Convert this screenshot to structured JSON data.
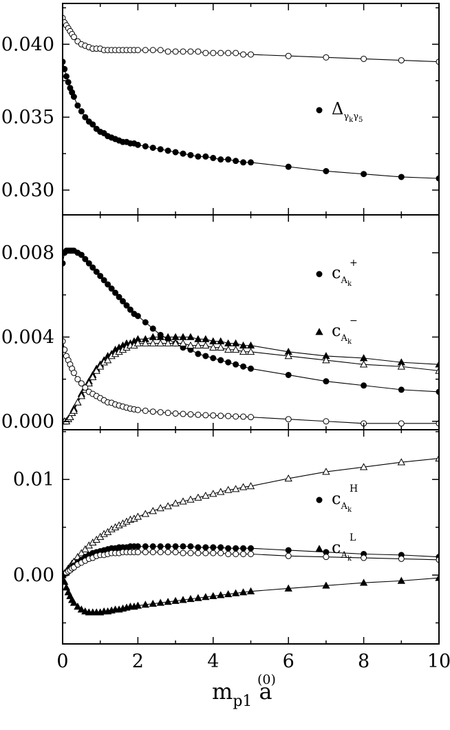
{
  "chart_data": [
    {
      "type": "scatter",
      "x_ticks": [
        "0",
        "2",
        "4",
        "6",
        "8",
        "10"
      ],
      "y_ticks": [
        "0.030",
        "0.035",
        "0.040"
      ],
      "xlim": [
        0,
        10
      ],
      "ylim": [
        0.0283,
        0.0428
      ],
      "legend": [
        {
          "marker": "filled-circle",
          "main": "Δ",
          "sub": "γ",
          "subsub": "k",
          "sub_tail": "γ",
          "sub_tail2": "5",
          "sup": ""
        }
      ],
      "series": [
        {
          "marker": "open-circle",
          "line": true,
          "x": [
            0,
            0.05,
            0.1,
            0.15,
            0.2,
            0.25,
            0.3,
            0.4,
            0.5,
            0.6,
            0.7,
            0.8,
            0.9,
            1.0,
            1.1,
            1.2,
            1.3,
            1.4,
            1.5,
            1.6,
            1.7,
            1.8,
            1.9,
            2.0,
            2.2,
            2.4,
            2.6,
            2.8,
            3.0,
            3.2,
            3.4,
            3.6,
            3.8,
            4.0,
            4.2,
            4.4,
            4.6,
            4.8,
            5.0,
            6,
            7,
            8,
            9,
            10
          ],
          "y": [
            0.0418,
            0.0415,
            0.0413,
            0.0411,
            0.0409,
            0.0407,
            0.0405,
            0.0402,
            0.04,
            0.0399,
            0.0398,
            0.0397,
            0.0397,
            0.0397,
            0.0396,
            0.0396,
            0.0396,
            0.0396,
            0.0396,
            0.0396,
            0.0396,
            0.0396,
            0.0396,
            0.0396,
            0.0396,
            0.0396,
            0.0396,
            0.0395,
            0.0395,
            0.0395,
            0.0395,
            0.0395,
            0.0394,
            0.0394,
            0.0394,
            0.0394,
            0.0394,
            0.0393,
            0.0393,
            0.0392,
            0.0391,
            0.039,
            0.0389,
            0.0388
          ]
        },
        {
          "marker": "filled-circle",
          "line": true,
          "x": [
            0,
            0.05,
            0.1,
            0.15,
            0.2,
            0.25,
            0.3,
            0.4,
            0.5,
            0.6,
            0.7,
            0.8,
            0.9,
            1.0,
            1.1,
            1.2,
            1.3,
            1.4,
            1.5,
            1.6,
            1.7,
            1.8,
            1.9,
            2.0,
            2.2,
            2.4,
            2.6,
            2.8,
            3.0,
            3.2,
            3.4,
            3.6,
            3.8,
            4.0,
            4.2,
            4.4,
            4.6,
            4.8,
            5.0,
            6,
            7,
            8,
            9,
            10
          ],
          "y": [
            0.0388,
            0.0383,
            0.0378,
            0.0374,
            0.037,
            0.0367,
            0.0364,
            0.0358,
            0.0354,
            0.035,
            0.0347,
            0.0345,
            0.0342,
            0.034,
            0.0339,
            0.0337,
            0.0336,
            0.0335,
            0.0334,
            0.0333,
            0.0333,
            0.0332,
            0.0332,
            0.0331,
            0.033,
            0.0329,
            0.0328,
            0.0327,
            0.0326,
            0.0325,
            0.0324,
            0.0323,
            0.0323,
            0.0322,
            0.0321,
            0.0321,
            0.032,
            0.0319,
            0.0319,
            0.0316,
            0.0313,
            0.0311,
            0.0309,
            0.0308
          ]
        }
      ]
    },
    {
      "type": "scatter",
      "x_ticks": [
        "0",
        "2",
        "4",
        "6",
        "8",
        "10"
      ],
      "y_ticks": [
        "0.000",
        "0.004",
        "0.008"
      ],
      "xlim": [
        0,
        10
      ],
      "ylim": [
        -0.0004,
        0.0098
      ],
      "legend": [
        {
          "marker": "filled-circle",
          "main": "c",
          "sub": "A",
          "subsub": "k",
          "sub_tail": "",
          "sub_tail2": "",
          "sup": "+"
        },
        {
          "marker": "filled-triangle",
          "main": "c",
          "sub": "A",
          "subsub": "k",
          "sub_tail": "",
          "sub_tail2": "",
          "sup": "−"
        }
      ],
      "series": [
        {
          "marker": "filled-circle",
          "line": true,
          "x": [
            0,
            0.05,
            0.1,
            0.15,
            0.2,
            0.25,
            0.3,
            0.4,
            0.5,
            0.6,
            0.7,
            0.8,
            0.9,
            1.0,
            1.1,
            1.2,
            1.3,
            1.4,
            1.5,
            1.6,
            1.7,
            1.8,
            1.9,
            2.0,
            2.2,
            2.4,
            2.6,
            2.8,
            3.0,
            3.2,
            3.4,
            3.6,
            3.8,
            4.0,
            4.2,
            4.4,
            4.6,
            4.8,
            5.0,
            6,
            7,
            8,
            9,
            10
          ],
          "y": [
            0.0075,
            0.008,
            0.0081,
            0.0081,
            0.0081,
            0.0081,
            0.0081,
            0.008,
            0.0079,
            0.0077,
            0.0075,
            0.0073,
            0.0071,
            0.0069,
            0.0067,
            0.0065,
            0.0063,
            0.0061,
            0.0059,
            0.0057,
            0.0055,
            0.0053,
            0.0051,
            0.005,
            0.0047,
            0.0044,
            0.0041,
            0.0039,
            0.0037,
            0.0035,
            0.0034,
            0.0032,
            0.0031,
            0.003,
            0.0029,
            0.0028,
            0.0027,
            0.0026,
            0.0025,
            0.0022,
            0.0019,
            0.0017,
            0.0015,
            0.0014
          ]
        },
        {
          "marker": "filled-triangle",
          "line": true,
          "x": [
            0,
            0.05,
            0.1,
            0.15,
            0.2,
            0.25,
            0.3,
            0.4,
            0.5,
            0.6,
            0.7,
            0.8,
            0.9,
            1.0,
            1.1,
            1.2,
            1.3,
            1.4,
            1.5,
            1.6,
            1.7,
            1.8,
            1.9,
            2.0,
            2.2,
            2.4,
            2.6,
            2.8,
            3.0,
            3.2,
            3.4,
            3.6,
            3.8,
            4.0,
            4.2,
            4.4,
            4.6,
            4.8,
            5.0,
            6,
            7,
            8,
            9,
            10
          ],
          "y": [
            0.0,
            0.0,
            0.0,
            0.0001,
            0.0002,
            0.0004,
            0.0006,
            0.0009,
            0.0013,
            0.0016,
            0.0019,
            0.0022,
            0.0025,
            0.0027,
            0.0029,
            0.0031,
            0.0032,
            0.0034,
            0.0035,
            0.0036,
            0.0037,
            0.0037,
            0.0038,
            0.0039,
            0.0039,
            0.004,
            0.004,
            0.004,
            0.004,
            0.004,
            0.004,
            0.0039,
            0.0039,
            0.0038,
            0.0038,
            0.0037,
            0.0037,
            0.0036,
            0.0036,
            0.0033,
            0.0031,
            0.003,
            0.0028,
            0.0027
          ]
        },
        {
          "marker": "open-triangle",
          "line": true,
          "x": [
            0,
            0.05,
            0.1,
            0.15,
            0.2,
            0.25,
            0.3,
            0.4,
            0.5,
            0.6,
            0.7,
            0.8,
            0.9,
            1.0,
            1.1,
            1.2,
            1.3,
            1.4,
            1.5,
            1.6,
            1.7,
            1.8,
            1.9,
            2.0,
            2.2,
            2.4,
            2.6,
            2.8,
            3.0,
            3.2,
            3.4,
            3.6,
            3.8,
            4.0,
            4.2,
            4.4,
            4.6,
            4.8,
            5.0,
            6,
            7,
            8,
            9,
            10
          ],
          "y": [
            0.0,
            0.0,
            0.0,
            0.0001,
            0.0002,
            0.0004,
            0.0005,
            0.0009,
            0.0012,
            0.0015,
            0.0018,
            0.0021,
            0.0024,
            0.0026,
            0.0028,
            0.0029,
            0.0031,
            0.0032,
            0.0033,
            0.0034,
            0.0035,
            0.0036,
            0.0036,
            0.0037,
            0.0037,
            0.0037,
            0.0037,
            0.0037,
            0.0037,
            0.0037,
            0.0036,
            0.0036,
            0.0036,
            0.0035,
            0.0035,
            0.0034,
            0.0034,
            0.0033,
            0.0033,
            0.0031,
            0.0029,
            0.0027,
            0.0026,
            0.0024
          ]
        },
        {
          "marker": "open-circle",
          "line": true,
          "x": [
            0,
            0.05,
            0.1,
            0.15,
            0.2,
            0.25,
            0.3,
            0.4,
            0.5,
            0.6,
            0.7,
            0.8,
            0.9,
            1.0,
            1.1,
            1.2,
            1.3,
            1.4,
            1.5,
            1.6,
            1.7,
            1.8,
            1.9,
            2.0,
            2.2,
            2.4,
            2.6,
            2.8,
            3.0,
            3.2,
            3.4,
            3.6,
            3.8,
            4.0,
            4.2,
            4.4,
            4.6,
            4.8,
            5.0,
            6,
            7,
            8,
            9,
            10
          ],
          "y": [
            0.0038,
            0.0034,
            0.0031,
            0.0029,
            0.0027,
            0.0025,
            0.0023,
            0.002,
            0.0018,
            0.0016,
            0.0014,
            0.0013,
            0.0012,
            0.0011,
            0.001,
            0.0009,
            0.00088,
            0.0008,
            0.00075,
            0.0007,
            0.00065,
            0.0006,
            0.00057,
            0.00054,
            0.0005,
            0.00046,
            0.00043,
            0.0004,
            0.00037,
            0.00035,
            0.00033,
            0.00031,
            0.00029,
            0.00028,
            0.00026,
            0.00025,
            0.00023,
            0.00022,
            0.0002,
            0.0001,
            0.0,
            -0.0001,
            -0.0001,
            -0.0001
          ]
        }
      ]
    },
    {
      "type": "scatter",
      "x_ticks": [
        "0",
        "2",
        "4",
        "6",
        "8",
        "10"
      ],
      "x_title": {
        "main": "m",
        "sub": "p1",
        "sup": "(0)",
        "tail": "a"
      },
      "y_ticks": [
        "0.00",
        "0.01"
      ],
      "xlim": [
        0,
        10
      ],
      "ylim": [
        -0.0072,
        0.0152
      ],
      "legend": [
        {
          "marker": "filled-circle",
          "main": "c",
          "sub": "A",
          "subsub": "k",
          "sub_tail": "",
          "sub_tail2": "",
          "sup": "H"
        },
        {
          "marker": "filled-triangle",
          "main": "c",
          "sub": "A",
          "subsub": "k",
          "sub_tail": "",
          "sub_tail2": "",
          "sup": "L"
        }
      ],
      "series": [
        {
          "marker": "open-triangle",
          "line": true,
          "x": [
            0,
            0.05,
            0.1,
            0.15,
            0.2,
            0.25,
            0.3,
            0.4,
            0.5,
            0.6,
            0.7,
            0.8,
            0.9,
            1.0,
            1.1,
            1.2,
            1.3,
            1.4,
            1.5,
            1.6,
            1.7,
            1.8,
            1.9,
            2.0,
            2.2,
            2.4,
            2.6,
            2.8,
            3.0,
            3.2,
            3.4,
            3.6,
            3.8,
            4.0,
            4.2,
            4.4,
            4.6,
            4.8,
            5.0,
            6,
            7,
            8,
            9,
            10
          ],
          "y": [
            0.0,
            0.0002,
            0.0004,
            0.0007,
            0.0009,
            0.0012,
            0.0014,
            0.0019,
            0.0023,
            0.0027,
            0.0031,
            0.0034,
            0.0037,
            0.004,
            0.0043,
            0.0045,
            0.0048,
            0.005,
            0.0052,
            0.0054,
            0.0056,
            0.0058,
            0.0059,
            0.0061,
            0.0064,
            0.0067,
            0.007,
            0.0072,
            0.0075,
            0.0077,
            0.0079,
            0.0081,
            0.0083,
            0.0085,
            0.0087,
            0.0089,
            0.009,
            0.0092,
            0.0093,
            0.0101,
            0.0108,
            0.0113,
            0.0118,
            0.0122
          ]
        },
        {
          "marker": "filled-circle",
          "line": true,
          "x": [
            0,
            0.05,
            0.1,
            0.15,
            0.2,
            0.25,
            0.3,
            0.4,
            0.5,
            0.6,
            0.7,
            0.8,
            0.9,
            1.0,
            1.1,
            1.2,
            1.3,
            1.4,
            1.5,
            1.6,
            1.7,
            1.8,
            1.9,
            2.0,
            2.2,
            2.4,
            2.6,
            2.8,
            3.0,
            3.2,
            3.4,
            3.6,
            3.8,
            4.0,
            4.2,
            4.4,
            4.6,
            4.8,
            5.0,
            6,
            7,
            8,
            9,
            10
          ],
          "y": [
            0.0,
            0.0001,
            0.0003,
            0.0004,
            0.0006,
            0.0008,
            0.001,
            0.0013,
            0.0016,
            0.0019,
            0.0021,
            0.0023,
            0.0024,
            0.0025,
            0.0026,
            0.0027,
            0.0028,
            0.0028,
            0.0029,
            0.0029,
            0.0029,
            0.003,
            0.003,
            0.003,
            0.003,
            0.003,
            0.003,
            0.003,
            0.003,
            0.003,
            0.003,
            0.0029,
            0.0029,
            0.0029,
            0.0029,
            0.0028,
            0.0028,
            0.0028,
            0.0028,
            0.0026,
            0.0024,
            0.0022,
            0.0021,
            0.0019
          ]
        },
        {
          "marker": "open-circle",
          "line": true,
          "x": [
            0,
            0.05,
            0.1,
            0.15,
            0.2,
            0.25,
            0.3,
            0.4,
            0.5,
            0.6,
            0.7,
            0.8,
            0.9,
            1.0,
            1.1,
            1.2,
            1.3,
            1.4,
            1.5,
            1.6,
            1.7,
            1.8,
            1.9,
            2.0,
            2.2,
            2.4,
            2.6,
            2.8,
            3.0,
            3.2,
            3.4,
            3.6,
            3.8,
            4.0,
            4.2,
            4.4,
            4.6,
            4.8,
            5.0,
            6,
            7,
            8,
            9,
            10
          ],
          "y": [
            0.0,
            0.0001,
            0.0002,
            0.0004,
            0.0005,
            0.0007,
            0.0008,
            0.0011,
            0.0013,
            0.0015,
            0.0017,
            0.0018,
            0.002,
            0.0021,
            0.0021,
            0.0022,
            0.0023,
            0.0023,
            0.0023,
            0.0024,
            0.0024,
            0.0024,
            0.0024,
            0.0024,
            0.0024,
            0.0024,
            0.0024,
            0.0024,
            0.0024,
            0.0023,
            0.0023,
            0.0023,
            0.0023,
            0.0023,
            0.0023,
            0.0022,
            0.0022,
            0.0022,
            0.0022,
            0.002,
            0.0019,
            0.0018,
            0.0017,
            0.0016
          ]
        },
        {
          "marker": "filled-triangle",
          "line": true,
          "x": [
            0,
            0.05,
            0.1,
            0.15,
            0.2,
            0.25,
            0.3,
            0.4,
            0.5,
            0.6,
            0.7,
            0.8,
            0.9,
            1.0,
            1.1,
            1.2,
            1.3,
            1.4,
            1.5,
            1.6,
            1.7,
            1.8,
            1.9,
            2.0,
            2.2,
            2.4,
            2.6,
            2.8,
            3.0,
            3.2,
            3.4,
            3.6,
            3.8,
            4.0,
            4.2,
            4.4,
            4.6,
            4.8,
            5.0,
            6,
            7,
            8,
            9,
            10
          ],
          "y": [
            0.0,
            -0.0007,
            -0.0013,
            -0.0018,
            -0.0022,
            -0.0026,
            -0.0029,
            -0.0033,
            -0.0036,
            -0.0038,
            -0.0039,
            -0.0039,
            -0.0039,
            -0.0039,
            -0.0038,
            -0.0038,
            -0.0037,
            -0.0036,
            -0.0036,
            -0.0035,
            -0.0034,
            -0.0033,
            -0.0033,
            -0.0032,
            -0.0031,
            -0.003,
            -0.0029,
            -0.0028,
            -0.0027,
            -0.0026,
            -0.0025,
            -0.0024,
            -0.0023,
            -0.0022,
            -0.0021,
            -0.002,
            -0.0019,
            -0.0018,
            -0.0017,
            -0.0014,
            -0.0011,
            -0.0008,
            -0.0006,
            -0.0003
          ]
        }
      ]
    }
  ]
}
